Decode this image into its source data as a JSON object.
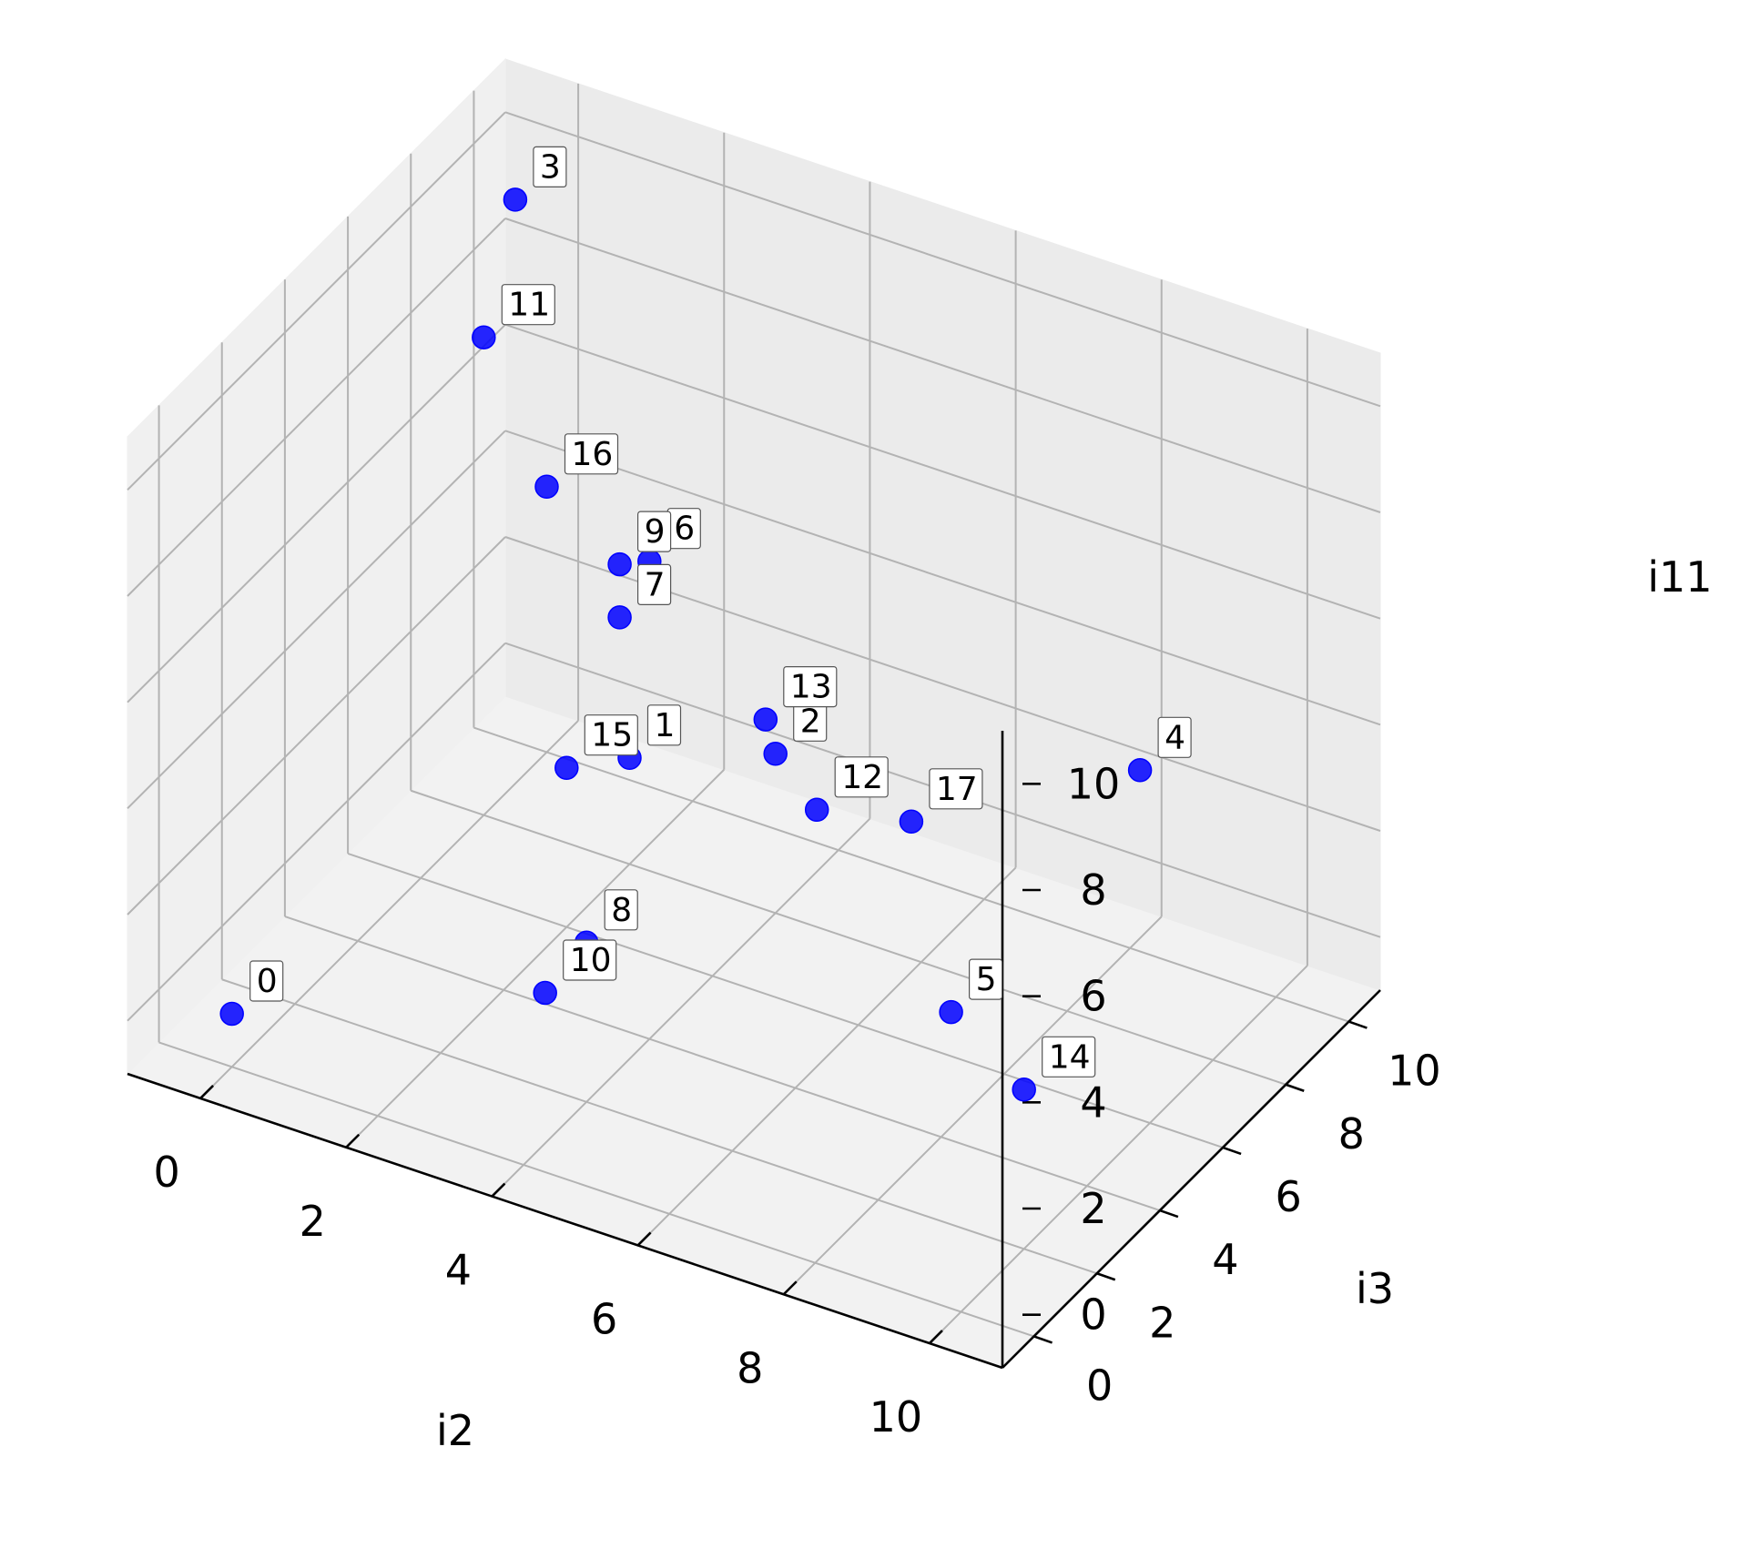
{
  "chart_data": {
    "type": "scatter",
    "title": "",
    "xlabel": "i2",
    "ylabel": "i3",
    "zlabel": "i11",
    "xlim": [
      -1,
      11
    ],
    "ylim": [
      -1,
      11
    ],
    "zlim": [
      -1,
      11
    ],
    "xticks": [
      0,
      2,
      4,
      6,
      8,
      10
    ],
    "yticks": [
      0,
      2,
      4,
      6,
      8,
      10
    ],
    "zticks": [
      0,
      2,
      4,
      6,
      8,
      10
    ],
    "grid": true,
    "marker_color": "#0000ff",
    "points": [
      {
        "label": "0",
        "x": 0,
        "y": 0,
        "z": 0
      },
      {
        "label": "1",
        "x": 2,
        "y": 8,
        "z": 1
      },
      {
        "label": "2",
        "x": 4,
        "y": 8,
        "z": 2
      },
      {
        "label": "3",
        "x": 0,
        "y": 9,
        "z": 10
      },
      {
        "label": "4",
        "x": 9,
        "y": 8,
        "z": 4
      },
      {
        "label": "5",
        "x": 9,
        "y": 2,
        "z": 3
      },
      {
        "label": "6",
        "x": 4,
        "y": 4,
        "z": 8
      },
      {
        "label": "7",
        "x": 1,
        "y": 10,
        "z": 2
      },
      {
        "label": "8",
        "x": 4,
        "y": 2,
        "z": 2
      },
      {
        "label": "9",
        "x": 1,
        "y": 10,
        "z": 3
      },
      {
        "label": "10",
        "x": 3,
        "y": 3,
        "z": 0
      },
      {
        "label": "11",
        "x": 0,
        "y": 8,
        "z": 8
      },
      {
        "label": "12",
        "x": 5,
        "y": 7,
        "z": 2
      },
      {
        "label": "13",
        "x": 3,
        "y": 10,
        "z": 1
      },
      {
        "label": "14",
        "x": 10,
        "y": 2,
        "z": 2
      },
      {
        "label": "15",
        "x": 2,
        "y": 6,
        "z": 2
      },
      {
        "label": "16",
        "x": 0,
        "y": 10,
        "z": 4
      },
      {
        "label": "17",
        "x": 5,
        "y": 10,
        "z": 0
      }
    ]
  }
}
